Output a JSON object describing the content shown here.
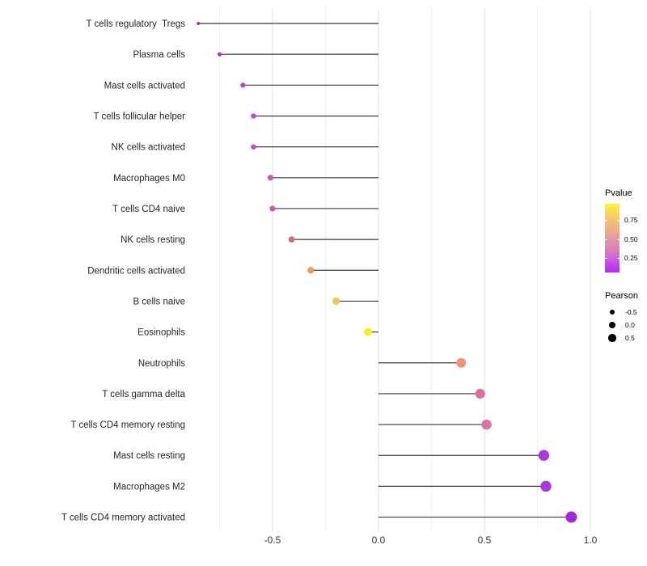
{
  "chart_data": {
    "type": "lollipop",
    "title": "",
    "xlabel": "",
    "ylabel": "",
    "x_tick_labels": [
      "-0.5",
      "0.0",
      "0.5",
      "1.0"
    ],
    "x_tick_values": [
      -0.5,
      0.0,
      0.5,
      1.0
    ],
    "x_minor_gridlines": [
      -0.75,
      -0.25,
      0.25,
      0.75
    ],
    "xlim": [
      -0.88,
      1.04
    ],
    "grid": "vertical-only",
    "size_encoding": "Pearson correlation (area-scaled dot size)",
    "color_encoding": "Pvalue (plasma gradient: purple=low, yellow=high)",
    "points": [
      {
        "label": "T cells regulatory  Tregs",
        "pearson": -0.85,
        "color": "#a02cc6"
      },
      {
        "label": "Plasma cells",
        "pearson": -0.75,
        "color": "#a737c5"
      },
      {
        "label": "Mast cells activated",
        "pearson": -0.64,
        "color": "#b846c3"
      },
      {
        "label": "T cells follicular helper",
        "pearson": -0.59,
        "color": "#c14fc0"
      },
      {
        "label": "NK cells activated",
        "pearson": -0.59,
        "color": "#c251bf"
      },
      {
        "label": "Macrophages M0",
        "pearson": -0.51,
        "color": "#c65ab4"
      },
      {
        "label": "T cells CD4 naive",
        "pearson": -0.5,
        "color": "#c75cb0"
      },
      {
        "label": "NK cells resting",
        "pearson": -0.41,
        "color": "#d26d80"
      },
      {
        "label": "Dendritic cells activated",
        "pearson": -0.32,
        "color": "#eb9e61"
      },
      {
        "label": "B cells naive",
        "pearson": -0.2,
        "color": "#f2c84e"
      },
      {
        "label": "Eosinophils",
        "pearson": -0.05,
        "color": "#f7ee1d"
      },
      {
        "label": "Neutrophils",
        "pearson": 0.39,
        "color": "#ec9379"
      },
      {
        "label": "T cells gamma delta",
        "pearson": 0.48,
        "color": "#d9709f"
      },
      {
        "label": "T cells CD4 memory resting",
        "pearson": 0.51,
        "color": "#d974aa"
      },
      {
        "label": "Mast cells resting",
        "pearson": 0.78,
        "color": "#a83bdb"
      },
      {
        "label": "Macrophages M2",
        "pearson": 0.79,
        "color": "#a53ad9"
      },
      {
        "label": "T cells CD4 memory activated",
        "pearson": 0.91,
        "color": "#9d2ade"
      }
    ],
    "legend": {
      "pvalue": {
        "title": "Pvalue",
        "ticks": [
          "0.75",
          "0.50",
          "0.25"
        ],
        "gradient_top_color": "#faf42b",
        "gradient_bottom_color": "#b62bf0"
      },
      "pearson": {
        "title": "Pearson",
        "items": [
          {
            "label": "-0.5",
            "value": -0.5
          },
          {
            "label": "0.0",
            "value": 0.0
          },
          {
            "label": "0.5",
            "value": 0.5
          }
        ]
      }
    },
    "colors": {
      "stick": "#3c3c3c",
      "grid_major": "#e4e4e4",
      "grid_minor": "#f1f1f1",
      "axis_text": "#333333",
      "y_label_text": "#262626"
    }
  }
}
